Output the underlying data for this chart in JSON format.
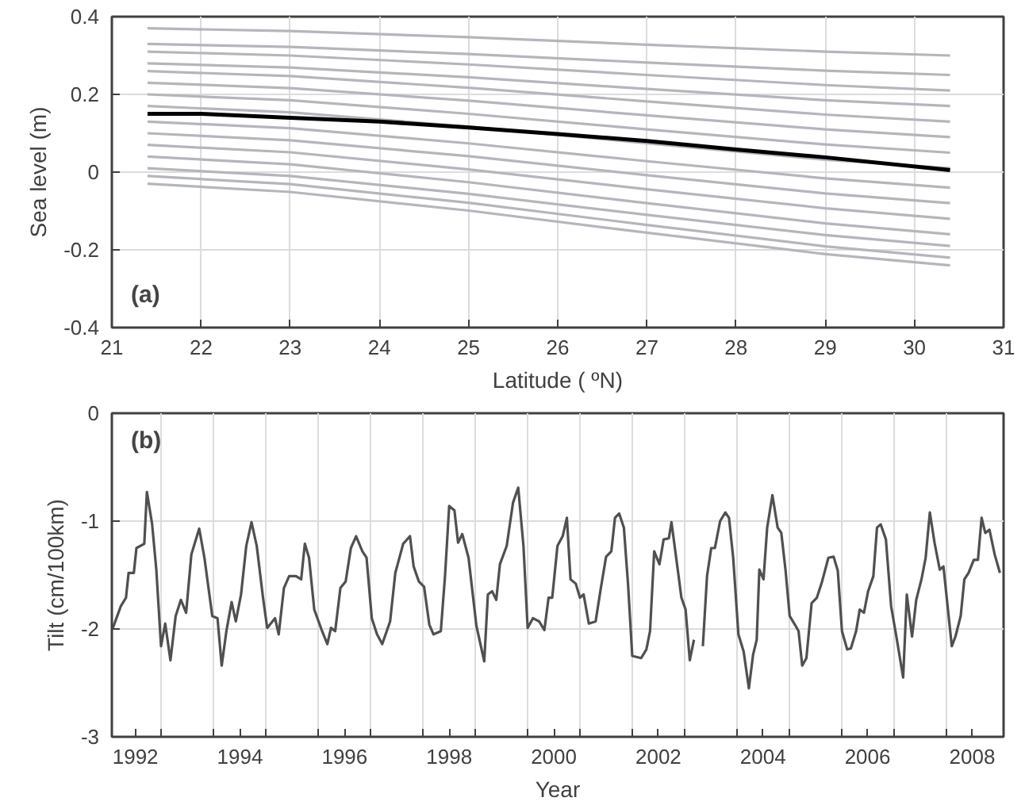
{
  "chart_data": [
    {
      "type": "line",
      "xlabel": "Latitude ( ºN)",
      "ylabel": "Sea level (m)",
      "annotations": [
        "(a)"
      ],
      "xlim": [
        21,
        31
      ],
      "ylim": [
        -0.4,
        0.4
      ],
      "xticks": [
        21,
        22,
        23,
        24,
        25,
        26,
        27,
        28,
        29,
        30,
        31
      ],
      "yticks": [
        -0.4,
        -0.2,
        0,
        0.2,
        0.4
      ],
      "grid": true,
      "x": [
        21.4,
        23,
        25,
        27,
        29,
        30.4
      ],
      "series": [
        {
          "color": "#b4b6bc",
          "values": [
            0.37,
            0.363,
            0.347,
            0.328,
            0.31,
            0.3
          ]
        },
        {
          "color": "#b4b6bc",
          "values": [
            0.33,
            0.322,
            0.304,
            0.282,
            0.261,
            0.25
          ]
        },
        {
          "color": "#b4b6bc",
          "values": [
            0.31,
            0.3,
            0.277,
            0.25,
            0.224,
            0.21
          ]
        },
        {
          "color": "#b4b6bc",
          "values": [
            0.28,
            0.269,
            0.244,
            0.214,
            0.185,
            0.17
          ]
        },
        {
          "color": "#b4b6bc",
          "values": [
            0.26,
            0.247,
            0.217,
            0.182,
            0.148,
            0.13
          ]
        },
        {
          "color": "#b4b6bc",
          "values": [
            0.23,
            0.216,
            0.184,
            0.146,
            0.11,
            0.09
          ]
        },
        {
          "color": "#b4b6bc",
          "values": [
            0.2,
            0.185,
            0.15,
            0.11,
            0.071,
            0.05
          ]
        },
        {
          "color": "#b4b6bc",
          "values": [
            0.17,
            0.154,
            0.117,
            0.074,
            0.032,
            0.01
          ]
        },
        {
          "color": "#b4b6bc",
          "values": [
            0.13,
            0.113,
            0.074,
            0.028,
            -0.016,
            -0.04
          ]
        },
        {
          "color": "#b4b6bc",
          "values": [
            0.1,
            0.082,
            0.041,
            -0.008,
            -0.055,
            -0.08
          ]
        },
        {
          "color": "#b4b6bc",
          "values": [
            0.07,
            0.051,
            0.007,
            -0.044,
            -0.093,
            -0.12
          ]
        },
        {
          "color": "#b4b6bc",
          "values": [
            0.04,
            0.02,
            -0.026,
            -0.08,
            -0.132,
            -0.16
          ]
        },
        {
          "color": "#b4b6bc",
          "values": [
            0.01,
            -0.01,
            -0.056,
            -0.11,
            -0.162,
            -0.19
          ]
        },
        {
          "color": "#b4b6bc",
          "values": [
            -0.01,
            -0.031,
            -0.079,
            -0.136,
            -0.191,
            -0.22
          ]
        },
        {
          "color": "#b4b6bc",
          "values": [
            -0.03,
            -0.051,
            -0.099,
            -0.156,
            -0.211,
            -0.24
          ]
        },
        {
          "color": "#000000",
          "x": [
            21.4,
            22,
            23,
            24,
            25,
            26,
            27,
            28,
            29,
            30.4
          ],
          "values": [
            0.15,
            0.15,
            0.14,
            0.13,
            0.115,
            0.098,
            0.08,
            0.058,
            0.038,
            0.005
          ]
        }
      ]
    },
    {
      "type": "line",
      "xlabel": "Year",
      "ylabel": "Tilt (cm/100km)",
      "annotations": [
        "(b)"
      ],
      "xlim": [
        1991.55,
        2008.6
      ],
      "ylim": [
        -3,
        0
      ],
      "yticks": [
        -3,
        -2,
        -1,
        0
      ],
      "grid": true,
      "xticks": [
        {
          "value": 1992,
          "label": "1992"
        },
        {
          "value": 1994,
          "label": "1994"
        },
        {
          "value": 1996,
          "label": "1996"
        },
        {
          "value": 1998,
          "label": "1998"
        },
        {
          "value": 2000,
          "label": "2000"
        },
        {
          "value": 2002,
          "label": "2002"
        },
        {
          "value": 2004,
          "label": "2004"
        },
        {
          "value": 2006,
          "label": "2006"
        },
        {
          "value": 2008,
          "label": "2008"
        },
        {
          "value": 1992.5,
          "label": null
        },
        {
          "value": 1993.5,
          "label": null
        },
        {
          "value": 1994.5,
          "label": null
        },
        {
          "value": 1995.5,
          "label": null
        },
        {
          "value": 1996.5,
          "label": null
        },
        {
          "value": 1997.5,
          "label": null
        },
        {
          "value": 1998.5,
          "label": null
        },
        {
          "value": 1999.5,
          "label": null
        },
        {
          "value": 2000.5,
          "label": null
        },
        {
          "value": 2001.5,
          "label": null
        },
        {
          "value": 2002.5,
          "label": null
        },
        {
          "value": 2003.5,
          "label": null
        },
        {
          "value": 2004.5,
          "label": null
        },
        {
          "value": 2005.5,
          "label": null
        },
        {
          "value": 2006.5,
          "label": null
        },
        {
          "value": 2007.5,
          "label": null
        }
      ],
      "series": [
        {
          "color": "#505050",
          "x": [
            1991.57,
            1991.72,
            1991.82,
            1991.87,
            1991.97,
            1992.02,
            1992.17,
            1992.22,
            1992.32,
            1992.4,
            1992.49,
            1992.57,
            1992.67,
            1992.77,
            1992.87,
            1992.97,
            1993.07,
            1993.22,
            1993.32,
            1993.47,
            1993.57,
            1993.65,
            1993.74,
            1993.84,
            1993.92,
            1994.02,
            1994.12,
            1994.22,
            1994.32,
            1994.44,
            1994.52,
            1994.67,
            1994.74,
            1994.84,
            1994.94,
            1995.07,
            1995.17,
            1995.24,
            1995.32,
            1995.42,
            1995.57,
            1995.67,
            1995.74,
            1995.82,
            1995.92,
            1996.02,
            1996.12,
            1996.22,
            1996.34,
            1996.42,
            1996.52,
            1996.62,
            1996.72,
            1996.87,
            1996.97,
            1997.07,
            1997.12,
            1997.25,
            1997.32,
            1997.42,
            1997.52,
            1997.62,
            1997.7,
            1997.84,
            1997.92,
            1998.0,
            1998.1,
            1998.17,
            1998.25,
            1998.37,
            1998.52,
            1998.67,
            1998.74,
            1998.82,
            1998.9,
            1998.97,
            1999.1,
            1999.22,
            1999.32,
            1999.42,
            1999.5,
            1999.6,
            1999.72,
            1999.82,
            1999.9,
            1999.97,
            2000.07,
            2000.17,
            2000.25,
            2000.32,
            2000.42,
            2000.5,
            2000.57,
            2000.67,
            2000.8,
            2000.9,
            2001.0,
            2001.1,
            2001.17,
            2001.25,
            2001.34,
            2001.42,
            2001.5,
            2001.67,
            2001.77,
            2001.84,
            2001.92,
            2002.02,
            2002.1,
            2002.2,
            2002.25,
            2002.37,
            2002.44,
            2002.52,
            2002.6,
            2002.68,
            2002.76,
            2002.85,
            2002.93,
            2003.01,
            2003.08,
            2003.18,
            2003.28,
            2003.35,
            2003.43,
            2003.53,
            2003.63,
            2003.73,
            2003.81,
            2003.88,
            2003.93,
            2004.01,
            2004.08,
            2004.18,
            2004.28,
            2004.35,
            2004.43,
            2004.51,
            2004.61,
            2004.68,
            2004.75,
            2004.83,
            2004.93,
            2005.03,
            2005.13,
            2005.25,
            2005.35,
            2005.43,
            2005.51,
            2005.61,
            2005.68,
            2005.78,
            2005.85,
            2005.93,
            2006.01,
            2006.11,
            2006.18,
            2006.25,
            2006.35,
            2006.45,
            2006.55,
            2006.68,
            2006.75,
            2006.85,
            2006.93,
            2007.03,
            2007.11,
            2007.19,
            2007.28,
            2007.38,
            2007.45,
            2007.61,
            2007.68,
            2007.78,
            2007.85,
            2007.93,
            2008.03,
            2008.11,
            2008.18,
            2008.25,
            2008.33,
            2008.43,
            2008.53
          ],
          "values": [
            -1.99,
            -1.79,
            -1.71,
            -1.48,
            -1.48,
            -1.25,
            -1.21,
            -0.73,
            -1.03,
            -1.45,
            -2.16,
            -1.95,
            -2.29,
            -1.88,
            -1.73,
            -1.85,
            -1.31,
            -1.07,
            -1.34,
            -1.88,
            -1.9,
            -2.34,
            -2.02,
            -1.75,
            -1.93,
            -1.68,
            -1.23,
            -1.01,
            -1.23,
            -1.71,
            -1.99,
            -1.9,
            -2.05,
            -1.62,
            -1.51,
            -1.51,
            -1.54,
            -1.21,
            -1.34,
            -1.82,
            -2.02,
            -2.14,
            -1.99,
            -2.02,
            -1.62,
            -1.56,
            -1.25,
            -1.14,
            -1.28,
            -1.34,
            -1.9,
            -2.05,
            -2.14,
            -1.93,
            -1.48,
            -1.3,
            -1.21,
            -1.14,
            -1.42,
            -1.56,
            -1.61,
            -1.96,
            -2.05,
            -2.02,
            -1.51,
            -0.86,
            -0.9,
            -1.2,
            -1.12,
            -1.34,
            -1.97,
            -2.3,
            -1.68,
            -1.65,
            -1.73,
            -1.4,
            -1.23,
            -0.83,
            -0.69,
            -1.23,
            -1.99,
            -1.9,
            -1.93,
            -2.01,
            -1.71,
            -1.71,
            -1.23,
            -1.14,
            -0.97,
            -1.54,
            -1.58,
            -1.71,
            -1.68,
            -1.95,
            -1.93,
            -1.62,
            -1.33,
            -1.28,
            -0.97,
            -0.93,
            -1.06,
            -1.59,
            -2.25,
            -2.27,
            -2.19,
            -2.02,
            -1.28,
            -1.4,
            -1.17,
            -1.16,
            -1.01,
            -1.45,
            -1.71,
            -1.82,
            -2.29,
            -2.1,
            null,
            -2.16,
            -1.51,
            -1.25,
            -1.25,
            -1.0,
            -0.92,
            -0.97,
            -1.34,
            -2.05,
            -2.21,
            -2.55,
            -2.24,
            -2.1,
            -1.45,
            -1.54,
            -1.06,
            -0.76,
            -1.06,
            -1.11,
            -1.45,
            -1.88,
            -1.96,
            -2.02,
            -2.34,
            -2.27,
            -1.76,
            -1.71,
            -1.56,
            -1.34,
            -1.33,
            -1.46,
            -2.02,
            -2.19,
            -2.18,
            -2.02,
            -1.82,
            -1.85,
            -1.65,
            -1.51,
            -1.06,
            -1.03,
            -1.17,
            -1.79,
            -2.07,
            -2.45,
            -1.68,
            -2.07,
            -1.73,
            -1.54,
            -1.34,
            -0.92,
            -1.2,
            -1.45,
            -1.42,
            -2.16,
            -2.07,
            -1.88,
            -1.54,
            -1.48,
            -1.36,
            -1.36,
            -0.97,
            -1.11,
            -1.08,
            -1.31,
            -1.48
          ]
        }
      ]
    }
  ]
}
